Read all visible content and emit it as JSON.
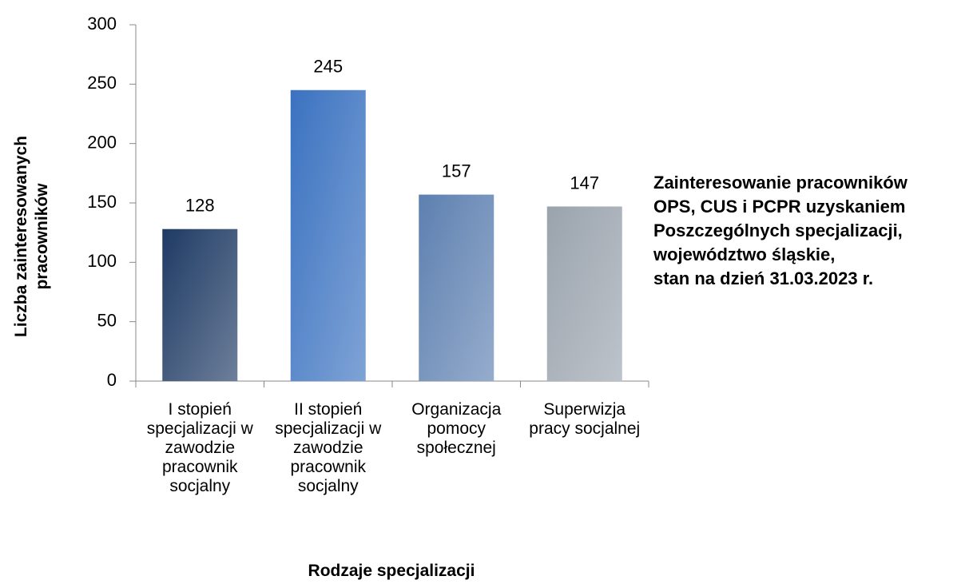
{
  "chart_data": {
    "type": "bar",
    "title": "Zainteresowanie pracowników\nOPS, CUS i PCPR uzyskaniem\nPoszczególnych specjalizacji,\nwojewództwo śląskie,\nstan na dzień 31.03.2023 r.",
    "x_label": "Rodzaje specjalizacji",
    "y_label": "Liczba zainteresowanych\npracowników",
    "categories": [
      "I stopień specjalizacji w zawodzie pracownik socjalny",
      "II stopień specjalizacji w zawodzie pracownik socjalny",
      "Organizacja pomocy społecznej",
      "Superwizja pracy socjalnej"
    ],
    "values": [
      128,
      245,
      157,
      147
    ],
    "colors": [
      "#1e3a64",
      "#3a72c0",
      "#5d80b0",
      "#9aa3ad"
    ],
    "ylim": [
      0,
      300
    ],
    "yticks": [
      0,
      50,
      100,
      150,
      200,
      250,
      300
    ]
  }
}
